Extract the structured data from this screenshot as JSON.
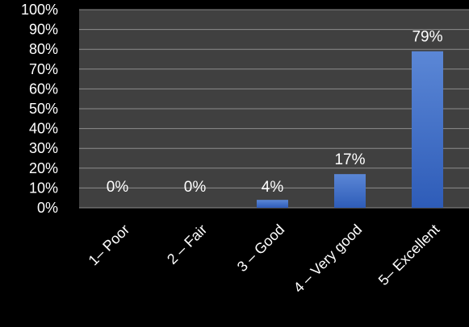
{
  "chart_data": {
    "type": "bar",
    "title": "",
    "xlabel": "",
    "ylabel": "",
    "categories": [
      "1– Poor",
      "2 – Fair",
      "3 – Good",
      "4 – Very good",
      "5– Excellent"
    ],
    "values": [
      0,
      0,
      4,
      17,
      79
    ],
    "data_labels": [
      "0%",
      "0%",
      "4%",
      "17%",
      "79%"
    ],
    "ylim": [
      0,
      100
    ],
    "y_ticks": [
      "0%",
      "10%",
      "20%",
      "30%",
      "40%",
      "50%",
      "60%",
      "70%",
      "80%",
      "90%",
      "100%"
    ],
    "grid": true,
    "legend": "none",
    "colors": {
      "background": "#000000",
      "plot_area": "#404040",
      "gridline": "#8c8c8c",
      "bar_top": "#5b87d6",
      "bar_bottom": "#2e5cb8",
      "text": "#ffffff"
    }
  }
}
